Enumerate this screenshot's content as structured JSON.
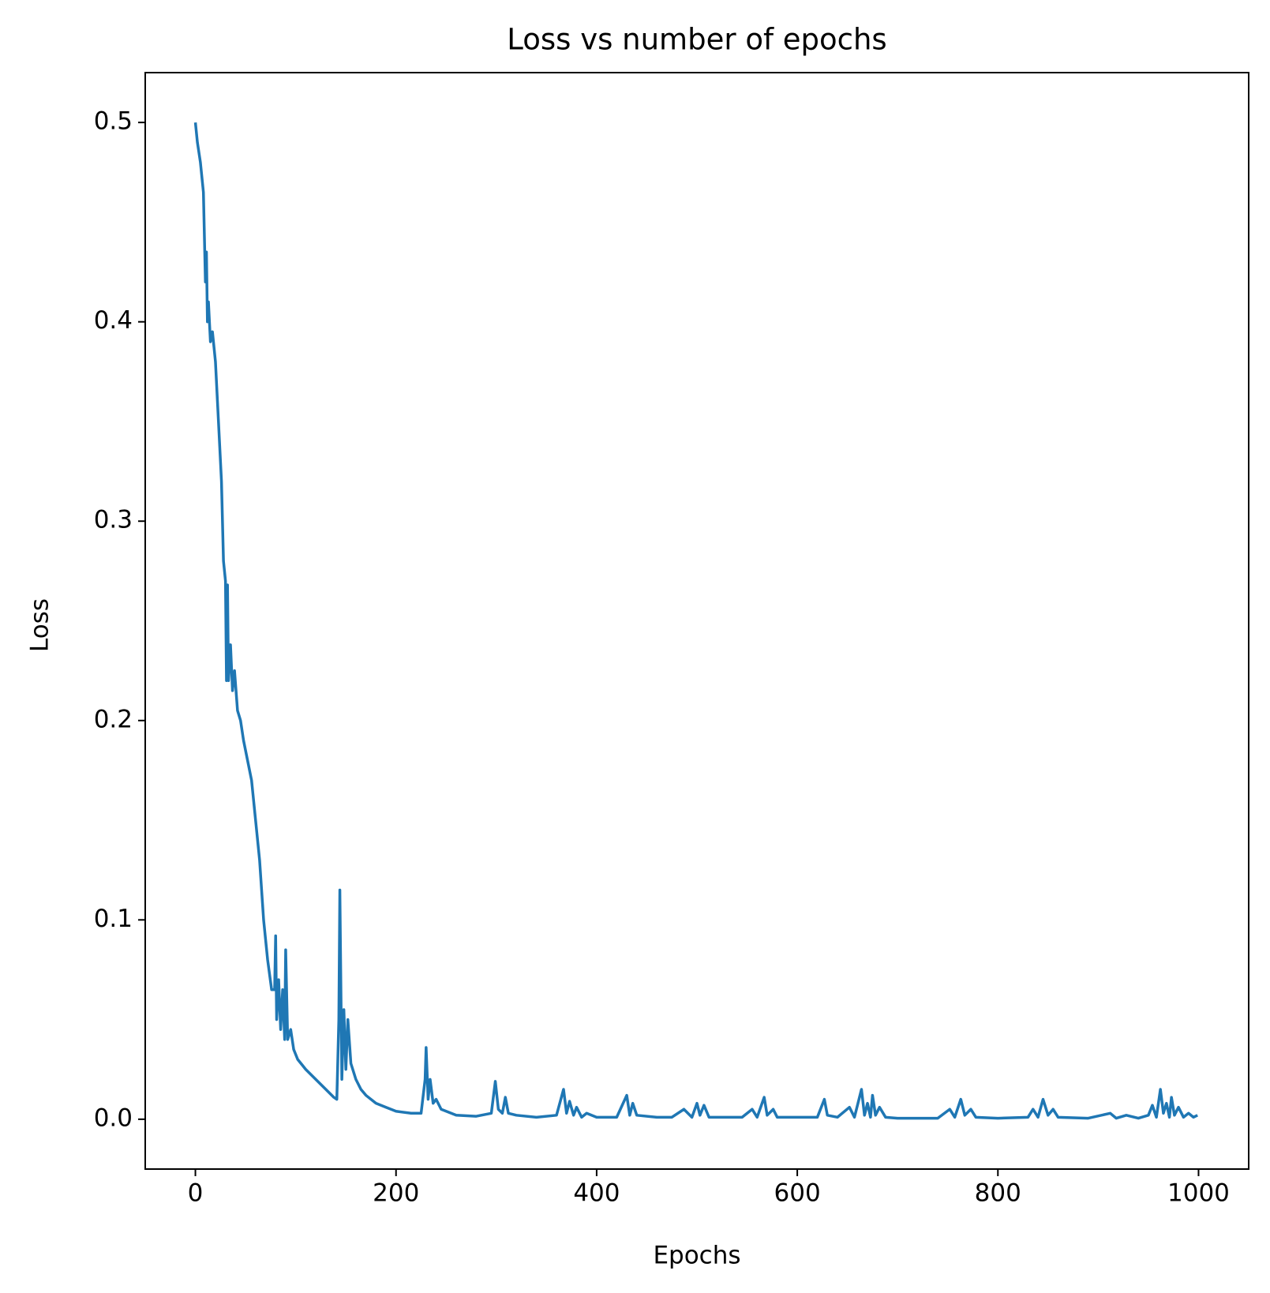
{
  "chart_data": {
    "type": "line",
    "title": "Loss vs number of epochs",
    "x_label": "Epochs",
    "y_label": "Loss",
    "xlim": [
      -50,
      1050
    ],
    "ylim": [
      -0.025,
      0.525
    ],
    "xticks": [
      0,
      200,
      400,
      600,
      800,
      1000
    ],
    "yticks": [
      {
        "value": 0,
        "label": "0.0"
      },
      0.1,
      0.2,
      0.3,
      0.4,
      0.5
    ],
    "grid": false,
    "series": [
      {
        "name": "Loss",
        "color": "#1f77b4",
        "x": [
          0,
          2,
          5,
          8,
          10,
          11,
          12,
          13,
          15,
          17,
          20,
          23,
          26,
          28,
          30,
          31,
          32,
          33,
          35,
          37,
          39,
          42,
          45,
          48,
          52,
          56,
          60,
          64,
          68,
          72,
          76,
          79,
          80,
          81,
          83,
          85,
          87,
          89,
          90,
          92,
          95,
          98,
          102,
          110,
          120,
          130,
          138,
          141,
          143,
          144,
          146,
          148,
          150,
          152,
          155,
          160,
          165,
          170,
          180,
          190,
          200,
          215,
          225,
          229,
          230,
          232,
          234,
          237,
          240,
          245,
          260,
          280,
          295,
          299,
          302,
          306,
          309,
          312,
          320,
          340,
          360,
          367,
          370,
          373,
          377,
          380,
          385,
          390,
          400,
          420,
          430,
          433,
          436,
          440,
          460,
          475,
          487,
          495,
          500,
          503,
          507,
          512,
          530,
          545,
          555,
          560,
          567,
          570,
          576,
          580,
          600,
          620,
          627,
          630,
          640,
          652,
          657,
          664,
          667,
          670,
          673,
          675,
          678,
          682,
          688,
          700,
          740,
          752,
          757,
          763,
          767,
          773,
          778,
          800,
          830,
          835,
          840,
          845,
          850,
          855,
          860,
          890,
          912,
          918,
          928,
          940,
          950,
          954,
          958,
          962,
          965,
          968,
          971,
          973,
          976,
          980,
          985,
          990,
          995,
          999
        ],
        "values": [
          0.5,
          0.49,
          0.48,
          0.465,
          0.42,
          0.435,
          0.4,
          0.41,
          0.39,
          0.395,
          0.38,
          0.35,
          0.32,
          0.28,
          0.27,
          0.22,
          0.268,
          0.22,
          0.238,
          0.215,
          0.225,
          0.205,
          0.2,
          0.19,
          0.18,
          0.17,
          0.15,
          0.13,
          0.1,
          0.08,
          0.065,
          0.065,
          0.092,
          0.05,
          0.07,
          0.045,
          0.065,
          0.04,
          0.085,
          0.04,
          0.045,
          0.035,
          0.03,
          0.025,
          0.02,
          0.015,
          0.011,
          0.01,
          0.05,
          0.115,
          0.02,
          0.055,
          0.025,
          0.05,
          0.028,
          0.02,
          0.015,
          0.012,
          0.008,
          0.006,
          0.004,
          0.003,
          0.003,
          0.02,
          0.036,
          0.01,
          0.02,
          0.008,
          0.01,
          0.005,
          0.002,
          0.0015,
          0.003,
          0.019,
          0.005,
          0.003,
          0.011,
          0.003,
          0.002,
          0.001,
          0.002,
          0.015,
          0.003,
          0.009,
          0.002,
          0.006,
          0.001,
          0.003,
          0.001,
          0.001,
          0.012,
          0.002,
          0.008,
          0.002,
          0.001,
          0.001,
          0.005,
          0.001,
          0.008,
          0.002,
          0.007,
          0.001,
          0.001,
          0.001,
          0.005,
          0.001,
          0.011,
          0.002,
          0.005,
          0.001,
          0.001,
          0.001,
          0.01,
          0.002,
          0.001,
          0.006,
          0.001,
          0.015,
          0.002,
          0.008,
          0.001,
          0.012,
          0.002,
          0.006,
          0.001,
          0.0005,
          0.0005,
          0.005,
          0.001,
          0.01,
          0.002,
          0.005,
          0.001,
          0.0005,
          0.001,
          0.005,
          0.001,
          0.01,
          0.002,
          0.005,
          0.001,
          0.0005,
          0.003,
          0.0005,
          0.002,
          0.0005,
          0.002,
          0.007,
          0.001,
          0.015,
          0.003,
          0.008,
          0.001,
          0.011,
          0.002,
          0.006,
          0.001,
          0.003,
          0.001,
          0.002
        ]
      }
    ]
  }
}
